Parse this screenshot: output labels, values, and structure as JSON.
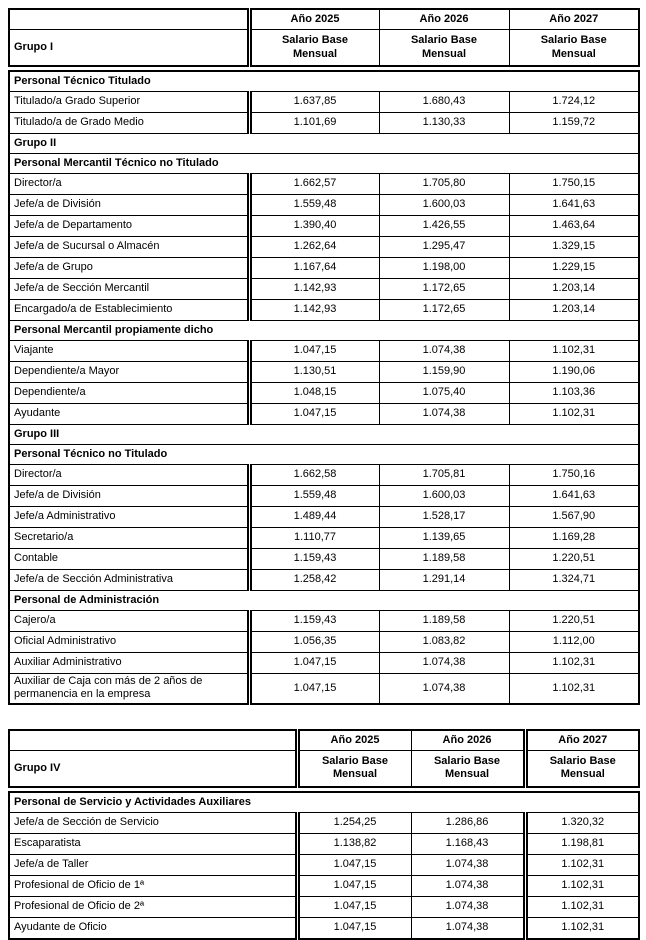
{
  "tables": [
    {
      "group_label": "Grupo I",
      "col_headers": [
        "Año 2025",
        "Año 2026",
        "Año 2027"
      ],
      "salary_header": "Salario Base Mensual",
      "rows": [
        {
          "type": "section",
          "label": "Personal Técnico Titulado"
        },
        {
          "type": "data",
          "label": "Titulado/a Grado Superior",
          "values": [
            "1.637,85",
            "1.680,43",
            "1.724,12"
          ]
        },
        {
          "type": "data",
          "label": "Titulado/a de Grado Medio",
          "values": [
            "1.101,69",
            "1.130,33",
            "1.159,72"
          ]
        },
        {
          "type": "section",
          "label": "Grupo II"
        },
        {
          "type": "section",
          "label": "Personal Mercantil Técnico no Titulado"
        },
        {
          "type": "data",
          "label": "Director/a",
          "values": [
            "1.662,57",
            "1.705,80",
            "1.750,15"
          ]
        },
        {
          "type": "data",
          "label": "Jefe/a de División",
          "values": [
            "1.559,48",
            "1.600,03",
            "1.641,63"
          ]
        },
        {
          "type": "data",
          "label": "Jefe/a de Departamento",
          "values": [
            "1.390,40",
            "1.426,55",
            "1.463,64"
          ]
        },
        {
          "type": "data",
          "label": "Jefe/a de Sucursal o Almacén",
          "values": [
            "1.262,64",
            "1.295,47",
            "1.329,15"
          ]
        },
        {
          "type": "data",
          "label": "Jefe/a de Grupo",
          "values": [
            "1.167,64",
            "1.198,00",
            "1.229,15"
          ]
        },
        {
          "type": "data",
          "label": "Jefe/a de Sección Mercantil",
          "values": [
            "1.142,93",
            "1.172,65",
            "1.203,14"
          ]
        },
        {
          "type": "data",
          "label": "Encargado/a de Establecimiento",
          "values": [
            "1.142,93",
            "1.172,65",
            "1.203,14"
          ]
        },
        {
          "type": "section",
          "label": "Personal Mercantil propiamente dicho"
        },
        {
          "type": "data",
          "label": "Viajante",
          "values": [
            "1.047,15",
            "1.074,38",
            "1.102,31"
          ]
        },
        {
          "type": "data",
          "label": "Dependiente/a Mayor",
          "values": [
            "1.130,51",
            "1.159,90",
            "1.190,06"
          ]
        },
        {
          "type": "data",
          "label": "Dependiente/a",
          "values": [
            "1.048,15",
            "1.075,40",
            "1.103,36"
          ]
        },
        {
          "type": "data",
          "label": "Ayudante",
          "values": [
            "1.047,15",
            "1.074,38",
            "1.102,31"
          ]
        },
        {
          "type": "section",
          "label": "Grupo III"
        },
        {
          "type": "section",
          "label": "Personal Técnico no Titulado"
        },
        {
          "type": "data",
          "label": "Director/a",
          "values": [
            "1.662,58",
            "1.705,81",
            "1.750,16"
          ]
        },
        {
          "type": "data",
          "label": "Jefe/a de División",
          "values": [
            "1.559,48",
            "1.600,03",
            "1.641,63"
          ]
        },
        {
          "type": "data",
          "label": "Jefe/a Administrativo",
          "values": [
            "1.489,44",
            "1.528,17",
            "1.567,90"
          ]
        },
        {
          "type": "data",
          "label": "Secretario/a",
          "values": [
            "1.110,77",
            "1.139,65",
            "1.169,28"
          ]
        },
        {
          "type": "data",
          "label": "Contable",
          "values": [
            "1.159,43",
            "1.189,58",
            "1.220,51"
          ]
        },
        {
          "type": "data",
          "label": "Jefe/a de Sección Administrativa",
          "values": [
            "1.258,42",
            "1.291,14",
            "1.324,71"
          ]
        },
        {
          "type": "section",
          "label": "Personal de Administración"
        },
        {
          "type": "data",
          "label": "Cajero/a",
          "values": [
            "1.159,43",
            "1.189,58",
            "1.220,51"
          ]
        },
        {
          "type": "data",
          "label": "Oficial Administrativo",
          "values": [
            "1.056,35",
            "1.083,82",
            "1.112,00"
          ]
        },
        {
          "type": "data",
          "label": "Auxiliar Administrativo",
          "values": [
            "1.047,15",
            "1.074,38",
            "1.102,31"
          ]
        },
        {
          "type": "data",
          "label": "Auxiliar de Caja con más de 2 años de permanencia en la empresa",
          "values": [
            "1.047,15",
            "1.074,38",
            "1.102,31"
          ]
        }
      ]
    },
    {
      "group_label": "Grupo IV",
      "col_headers": [
        "Año 2025",
        "Año 2026",
        "Año 2027"
      ],
      "salary_header": "Salario Base Mensual",
      "rows": [
        {
          "type": "section",
          "label": "Personal de Servicio y Actividades Auxiliares"
        },
        {
          "type": "data",
          "label": "Jefe/a de Sección de Servicio",
          "values": [
            "1.254,25",
            "1.286,86",
            "1.320,32"
          ]
        },
        {
          "type": "data",
          "label": "Escaparatista",
          "values": [
            "1.138,82",
            "1.168,43",
            "1.198,81"
          ]
        },
        {
          "type": "data",
          "label": "Jefe/a de Taller",
          "values": [
            "1.047,15",
            "1.074,38",
            "1.102,31"
          ]
        },
        {
          "type": "data",
          "label": "Profesional de Oficio de 1ª",
          "values": [
            "1.047,15",
            "1.074,38",
            "1.102,31"
          ]
        },
        {
          "type": "data",
          "label": "Profesional de Oficio de 2ª",
          "values": [
            "1.047,15",
            "1.074,38",
            "1.102,31"
          ]
        },
        {
          "type": "data",
          "label": "Ayudante de Oficio",
          "values": [
            "1.047,15",
            "1.074,38",
            "1.102,31"
          ]
        }
      ]
    }
  ]
}
